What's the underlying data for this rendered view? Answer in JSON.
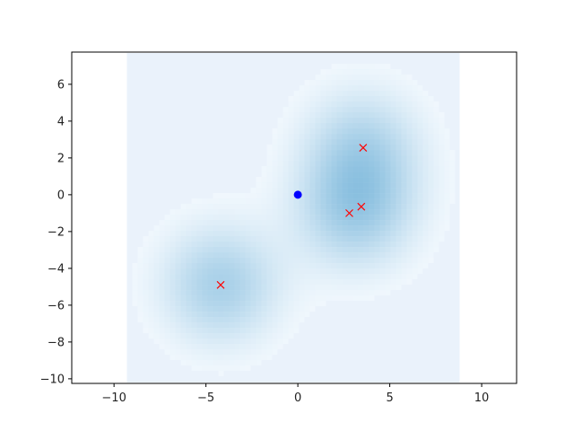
{
  "chart_data": {
    "type": "heatmap",
    "title": "",
    "xlabel": "",
    "ylabel": "",
    "xlim": [
      -12.3,
      11.9
    ],
    "ylim": [
      -10.25,
      7.75
    ],
    "x_ticks": [
      -10,
      -5,
      0,
      5,
      10
    ],
    "y_ticks": [
      -10,
      -8,
      -6,
      -4,
      -2,
      0,
      2,
      4,
      6
    ],
    "x_tick_labels": [
      "−10",
      "−5",
      "0",
      "5",
      "10"
    ],
    "y_tick_labels": [
      "−10",
      "−8",
      "−6",
      "−4",
      "−2",
      "0",
      "2",
      "4",
      "6"
    ],
    "grid": false,
    "legend": "none",
    "heatmap_extent": {
      "x": [
        -9.3,
        8.8
      ],
      "y": [
        -10.2,
        7.7
      ]
    },
    "colormap": {
      "low": "#f7fbff",
      "high": "#6aaed6"
    },
    "background_color": "#eaf2fb",
    "density_centers": [
      {
        "x": -4.2,
        "y": -4.9,
        "weight": 0.55
      },
      {
        "x": 3.5,
        "y": 2.6,
        "weight": 0.45
      },
      {
        "x": 2.8,
        "y": -1.0,
        "weight": 0.3
      },
      {
        "x": 3.5,
        "y": -0.65,
        "weight": 0.3
      }
    ],
    "series": [
      {
        "marker": "x",
        "color": "#ff0000",
        "points": [
          {
            "x": -4.2,
            "y": -4.9
          },
          {
            "x": 3.55,
            "y": 2.55
          },
          {
            "x": 2.8,
            "y": -1.0
          },
          {
            "x": 3.45,
            "y": -0.65
          }
        ]
      },
      {
        "marker": "o",
        "color": "#0000ff",
        "points": [
          {
            "x": 0.0,
            "y": 0.0
          }
        ]
      }
    ]
  }
}
